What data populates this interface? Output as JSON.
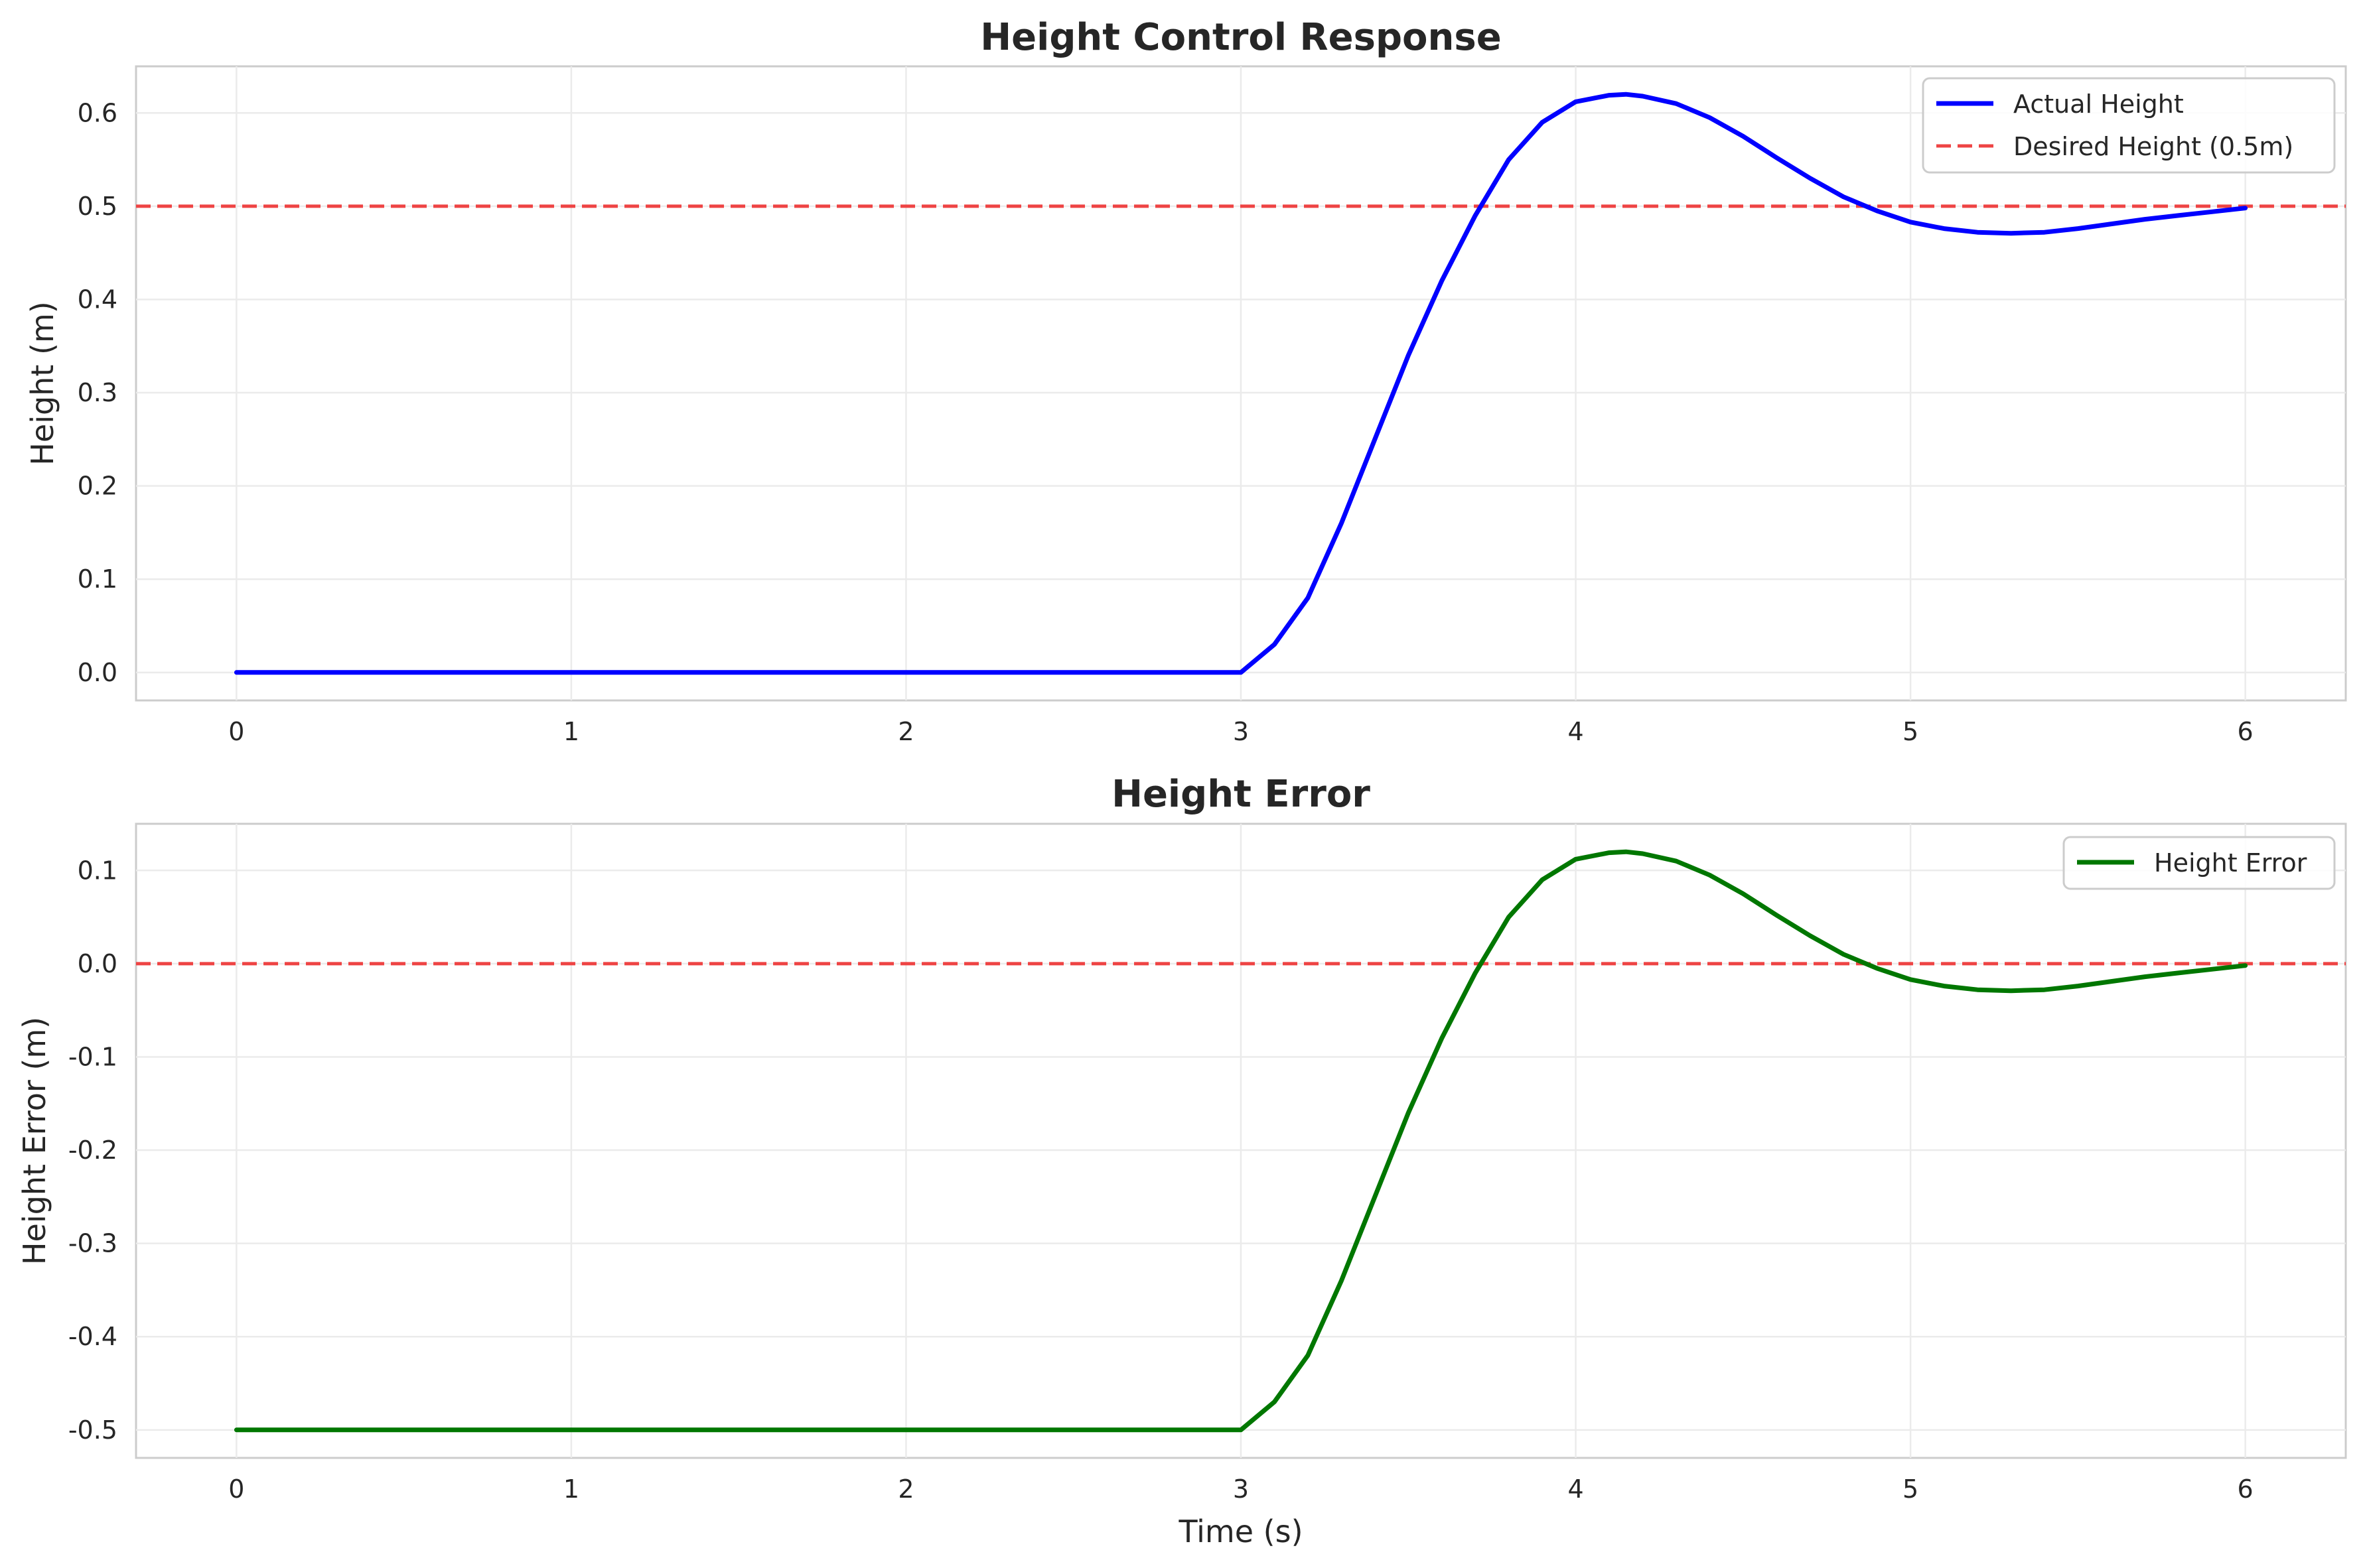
{
  "chart_data": [
    {
      "type": "line",
      "title": "Height Control Response",
      "xlabel": "",
      "ylabel": "Height (m)",
      "xlim": [
        -0.3,
        6.3
      ],
      "ylim": [
        -0.03,
        0.65
      ],
      "xticks": [
        0,
        1,
        2,
        3,
        4,
        5,
        6
      ],
      "xtick_labels": [
        "0",
        "1",
        "2",
        "3",
        "4",
        "5",
        "6"
      ],
      "yticks": [
        0.0,
        0.1,
        0.2,
        0.3,
        0.4,
        0.5,
        0.6
      ],
      "ytick_labels": [
        "0.0",
        "0.1",
        "0.2",
        "0.3",
        "0.4",
        "0.5",
        "0.6"
      ],
      "grid": true,
      "legend": "top-right",
      "series": [
        {
          "name": "Actual Height",
          "color": "#0000ff",
          "style": "solid",
          "x": [
            0,
            0.5,
            1,
            1.5,
            2,
            2.5,
            3.0,
            3.1,
            3.2,
            3.3,
            3.4,
            3.5,
            3.6,
            3.7,
            3.8,
            3.9,
            4.0,
            4.1,
            4.15,
            4.2,
            4.3,
            4.4,
            4.5,
            4.6,
            4.7,
            4.8,
            4.9,
            5.0,
            5.1,
            5.2,
            5.3,
            5.4,
            5.5,
            5.6,
            5.7,
            5.8,
            5.9,
            6.0
          ],
          "y": [
            0.0,
            0.0,
            0.0,
            0.0,
            0.0,
            0.0,
            0.0,
            0.03,
            0.08,
            0.16,
            0.25,
            0.34,
            0.42,
            0.49,
            0.55,
            0.59,
            0.612,
            0.619,
            0.62,
            0.618,
            0.61,
            0.595,
            0.575,
            0.552,
            0.53,
            0.51,
            0.495,
            0.483,
            0.476,
            0.472,
            0.471,
            0.472,
            0.476,
            0.481,
            0.486,
            0.49,
            0.494,
            0.498
          ]
        },
        {
          "name": "Desired Height (0.5m)",
          "color": "#ee4444",
          "style": "dashed",
          "x": [
            -0.3,
            6.3
          ],
          "y": [
            0.5,
            0.5
          ]
        }
      ]
    },
    {
      "type": "line",
      "title": "Height Error",
      "xlabel": "Time (s)",
      "ylabel": "Height Error (m)",
      "xlim": [
        -0.3,
        6.3
      ],
      "ylim": [
        -0.53,
        0.15
      ],
      "xticks": [
        0,
        1,
        2,
        3,
        4,
        5,
        6
      ],
      "xtick_labels": [
        "0",
        "1",
        "2",
        "3",
        "4",
        "5",
        "6"
      ],
      "yticks": [
        0.1,
        0.0,
        -0.1,
        -0.2,
        -0.3,
        -0.4,
        -0.5
      ],
      "ytick_labels": [
        "0.1",
        "0.0",
        "-0.1",
        "-0.2",
        "-0.3",
        "-0.4",
        "-0.5"
      ],
      "grid": true,
      "legend": "top-right",
      "series": [
        {
          "name": "Height Error",
          "color": "#007700",
          "style": "solid",
          "x": [
            0,
            0.5,
            1,
            1.5,
            2,
            2.5,
            3.0,
            3.1,
            3.2,
            3.3,
            3.4,
            3.5,
            3.6,
            3.7,
            3.8,
            3.9,
            4.0,
            4.1,
            4.15,
            4.2,
            4.3,
            4.4,
            4.5,
            4.6,
            4.7,
            4.8,
            4.9,
            5.0,
            5.1,
            5.2,
            5.3,
            5.4,
            5.5,
            5.6,
            5.7,
            5.8,
            5.9,
            6.0
          ],
          "y": [
            -0.5,
            -0.5,
            -0.5,
            -0.5,
            -0.5,
            -0.5,
            -0.5,
            -0.47,
            -0.42,
            -0.34,
            -0.25,
            -0.16,
            -0.08,
            -0.01,
            0.05,
            0.09,
            0.112,
            0.119,
            0.12,
            0.118,
            0.11,
            0.095,
            0.075,
            0.052,
            0.03,
            0.01,
            -0.005,
            -0.017,
            -0.024,
            -0.028,
            -0.029,
            -0.028,
            -0.024,
            -0.019,
            -0.014,
            -0.01,
            -0.006,
            -0.002
          ]
        },
        {
          "name": "",
          "color": "#ee4444",
          "style": "dashed",
          "x": [
            -0.3,
            6.3
          ],
          "y": [
            0.0,
            0.0
          ]
        }
      ]
    }
  ]
}
